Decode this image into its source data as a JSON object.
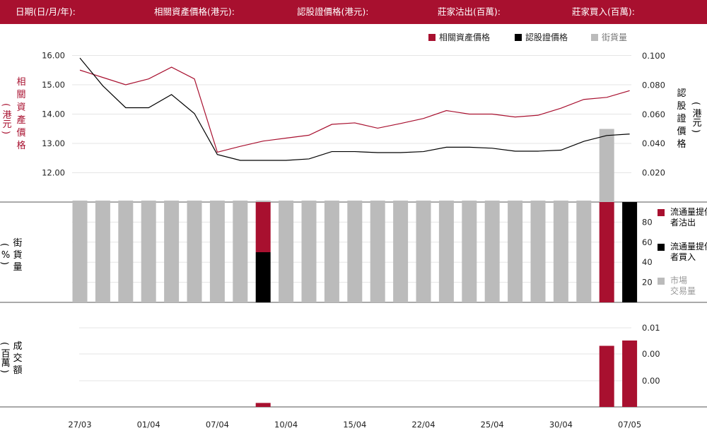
{
  "header": {
    "date_label": "日期(日/月/年):",
    "underlying_label": "相關資產價格(港元):",
    "warrant_label": "認股證價格(港元):",
    "sell_label": "莊家沽出(百萬):",
    "buy_label": "莊家買入(百萬):"
  },
  "legend": {
    "underlying": "相關資產價格",
    "warrant": "認股證價格",
    "street": "街貨量"
  },
  "colors": {
    "brand": "#a8102f",
    "warrant": "#000000",
    "street": "#bbbbbb"
  },
  "axis_titles": {
    "left_price": "相關資產價格",
    "left_price_unit": "(港元)",
    "right_price": "認股證價格",
    "right_price_unit": "(港元)",
    "street_title": "街貨量",
    "street_unit": "(%)",
    "turnover_title": "成交額",
    "turnover_unit": "(百萬)"
  },
  "street_legend": {
    "sell": "流通量提供者沽出",
    "buy": "流通量提供者買入",
    "market": "市場交易量"
  },
  "chart_data": {
    "type": "line",
    "x_ticks": [
      "27/03",
      "01/04",
      "07/04",
      "10/04",
      "15/04",
      "22/04",
      "25/04",
      "30/04",
      "07/05"
    ],
    "left_ticks": [
      "16.00",
      "15.00",
      "14.00",
      "13.00",
      "12.00"
    ],
    "right_ticks": [
      "0.100",
      "0.080",
      "0.060",
      "0.040",
      "0.020"
    ],
    "street_ticks": [
      "80",
      "60",
      "40",
      "20"
    ],
    "turnover_ticks": [
      "0.01",
      "0.00",
      "0.00"
    ],
    "underlying_price": [
      15.5,
      15.25,
      15.0,
      15.2,
      15.6,
      15.2,
      12.7,
      12.9,
      13.08,
      13.18,
      13.28,
      13.65,
      13.7,
      13.52,
      13.68,
      13.85,
      14.12,
      14.0,
      14.0,
      13.9,
      13.96,
      14.2,
      14.5,
      14.57,
      14.8
    ],
    "warrant_price": [
      0.0985,
      0.0795,
      0.0645,
      0.0645,
      0.0735,
      0.0605,
      0.0325,
      0.0285,
      0.0285,
      0.0285,
      0.0295,
      0.0345,
      0.0345,
      0.0338,
      0.0338,
      0.0345,
      0.0375,
      0.0375,
      0.0368,
      0.0348,
      0.0348,
      0.0355,
      0.0415,
      0.0455,
      0.0465
    ],
    "street_volume": [
      1,
      1,
      1,
      1,
      1,
      1,
      1,
      1,
      1,
      1,
      1,
      1,
      1,
      1,
      1,
      1,
      1,
      1,
      1,
      1,
      1,
      1,
      1,
      50,
      0
    ],
    "street_pct_market": [
      100,
      100,
      100,
      100,
      100,
      100,
      100,
      100,
      0,
      100,
      100,
      100,
      100,
      100,
      100,
      100,
      100,
      100,
      100,
      100,
      100,
      100,
      100,
      0,
      0
    ],
    "street_pct_sell": [
      0,
      0,
      0,
      0,
      0,
      0,
      0,
      0,
      50,
      0,
      0,
      0,
      0,
      0,
      0,
      0,
      0,
      0,
      0,
      0,
      0,
      0,
      0,
      100,
      0
    ],
    "street_pct_buy": [
      0,
      0,
      0,
      0,
      0,
      0,
      0,
      0,
      50,
      0,
      0,
      0,
      0,
      0,
      0,
      0,
      0,
      0,
      0,
      0,
      0,
      0,
      0,
      0,
      100
    ],
    "turnover": [
      0,
      0,
      0,
      0,
      0,
      0,
      0,
      0,
      0.0015,
      0,
      0,
      0,
      0,
      0,
      0,
      0,
      0,
      0,
      0,
      0,
      0,
      0,
      0,
      0.023,
      0.025
    ]
  }
}
